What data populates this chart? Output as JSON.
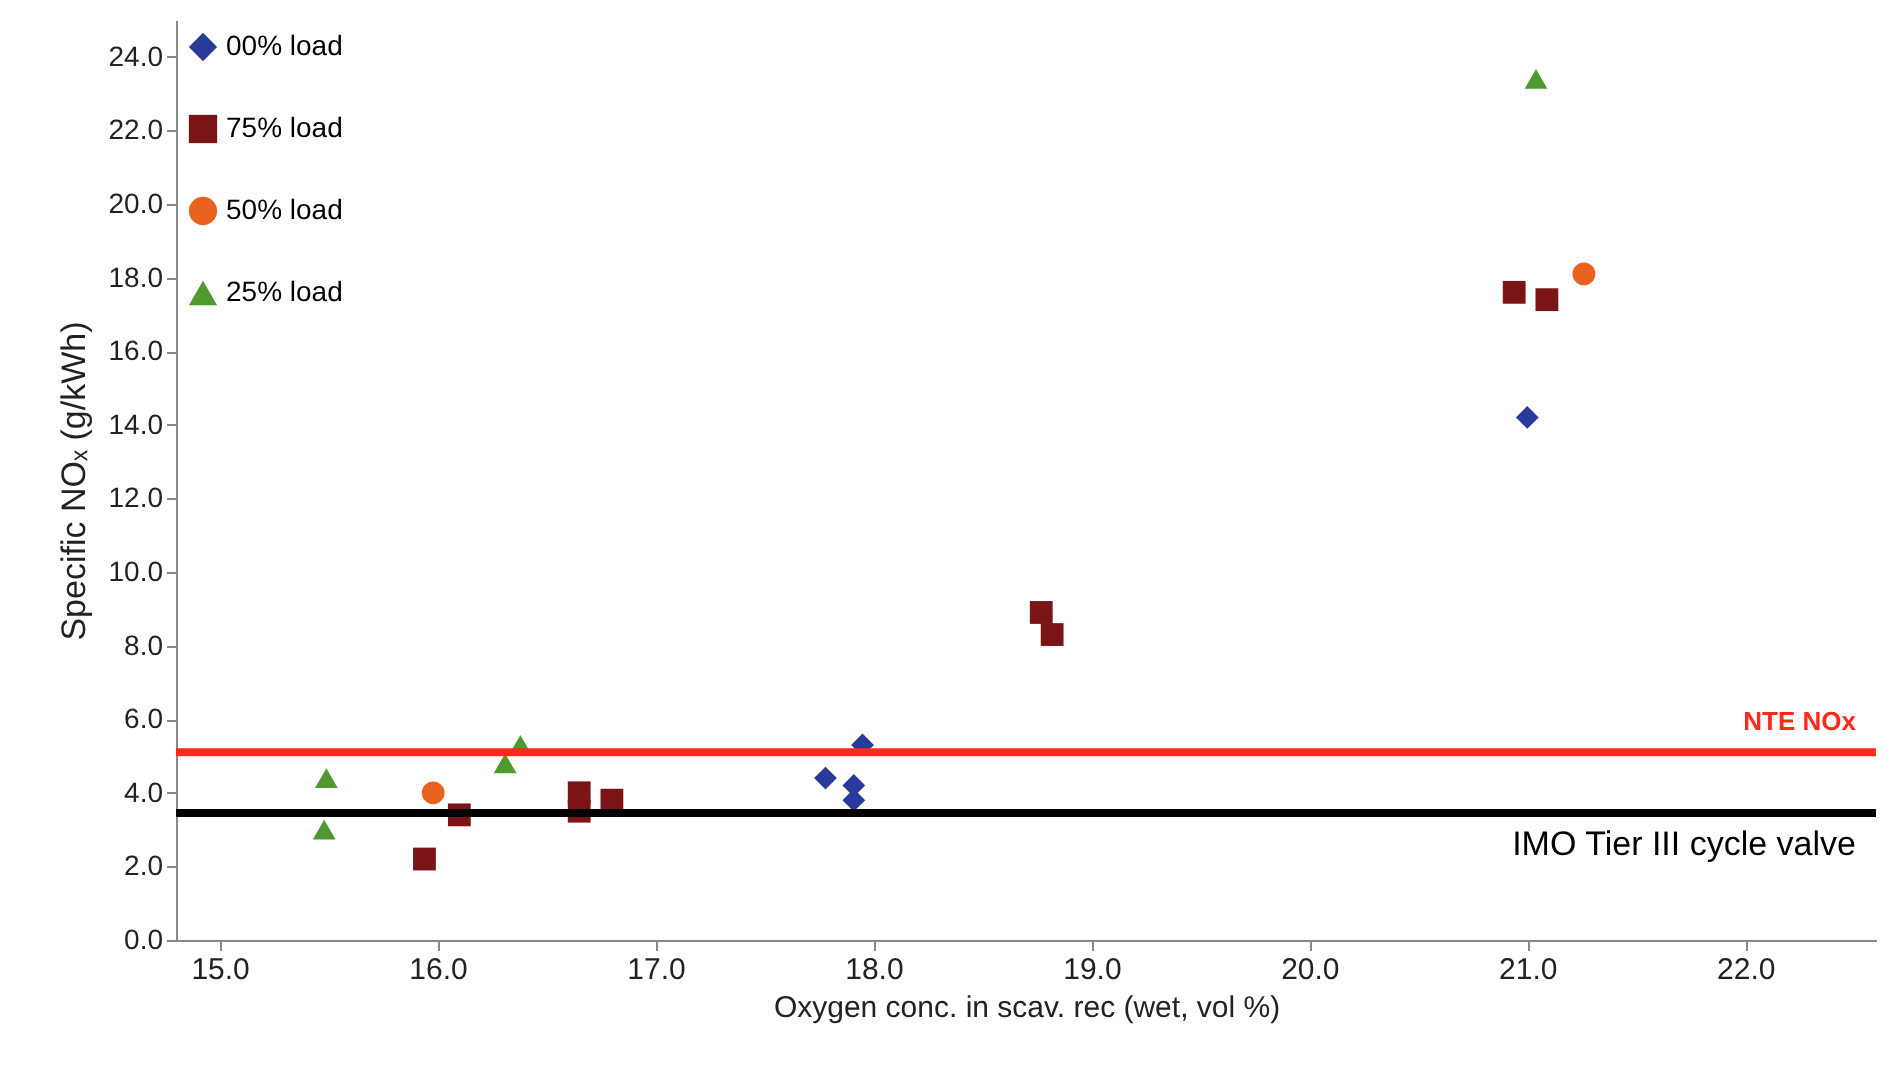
{
  "chart_data": {
    "type": "scatter",
    "xlabel": "Oxygen conc. in scav. rec (wet, vol %)",
    "ylabel": "Specific NOₓ (g/kWh)",
    "xlim": [
      14.8,
      22.6
    ],
    "xticks": [
      {
        "value": 15,
        "label": "15.0"
      },
      {
        "value": 16,
        "label": "16.0"
      },
      {
        "value": 17,
        "label": "17.0"
      },
      {
        "value": 18,
        "label": "18.0"
      },
      {
        "value": 19,
        "label": "19.0"
      },
      {
        "value": 20,
        "label": "20.0"
      },
      {
        "value": 21,
        "label": "21.0"
      },
      {
        "value": 22,
        "label": "22.0"
      }
    ],
    "ylim": [
      0,
      25
    ],
    "yticks": [
      {
        "value": 0,
        "label": "0.0"
      },
      {
        "value": 2,
        "label": "2.0"
      },
      {
        "value": 4,
        "label": "4.0"
      },
      {
        "value": 6,
        "label": "6.0"
      },
      {
        "value": 8,
        "label": "8.0"
      },
      {
        "value": 10,
        "label": "10.0"
      },
      {
        "value": 12,
        "label": "12.0"
      },
      {
        "value": 14,
        "label": "14.0"
      },
      {
        "value": 16,
        "label": "16.0"
      },
      {
        "value": 18,
        "label": "18.0"
      },
      {
        "value": 20,
        "label": "20.0"
      },
      {
        "value": 22,
        "label": "22.0"
      },
      {
        "value": 24,
        "label": "24.0"
      }
    ],
    "grid": false,
    "legend": "top left",
    "series": [
      {
        "name": "00% load",
        "color": "#2a3a9a",
        "marker": "diamond",
        "x": [
          17.78,
          17.95,
          17.91,
          17.91,
          21.0
        ],
        "values": [
          4.4,
          5.3,
          4.2,
          3.8,
          14.2
        ]
      },
      {
        "name": "75% load",
        "color": "#7b1416",
        "marker": "square",
        "x": [
          15.94,
          16.1,
          16.65,
          16.65,
          16.8,
          18.77,
          18.82,
          20.94,
          21.09
        ],
        "values": [
          2.2,
          3.4,
          4.0,
          3.5,
          3.8,
          8.9,
          8.3,
          17.6,
          17.4
        ]
      },
      {
        "name": "50% load",
        "color": "#e8641e",
        "marker": "circle",
        "x": [
          15.98,
          21.26
        ],
        "values": [
          4.0,
          18.1
        ]
      },
      {
        "name": "25% load",
        "color": "#4e9a2e",
        "marker": "triangle",
        "x": [
          15.49,
          15.48,
          16.31,
          16.38,
          21.04
        ],
        "values": [
          4.4,
          3.0,
          4.8,
          5.3,
          23.4
        ]
      }
    ],
    "ref_lines": [
      {
        "axis": "y",
        "value": 5.1,
        "label": "NTE NOx",
        "color": "#ff2a1a"
      },
      {
        "axis": "y",
        "value": 3.45,
        "label": "IMO Tier III cycle valve",
        "color": "#000000"
      }
    ]
  }
}
